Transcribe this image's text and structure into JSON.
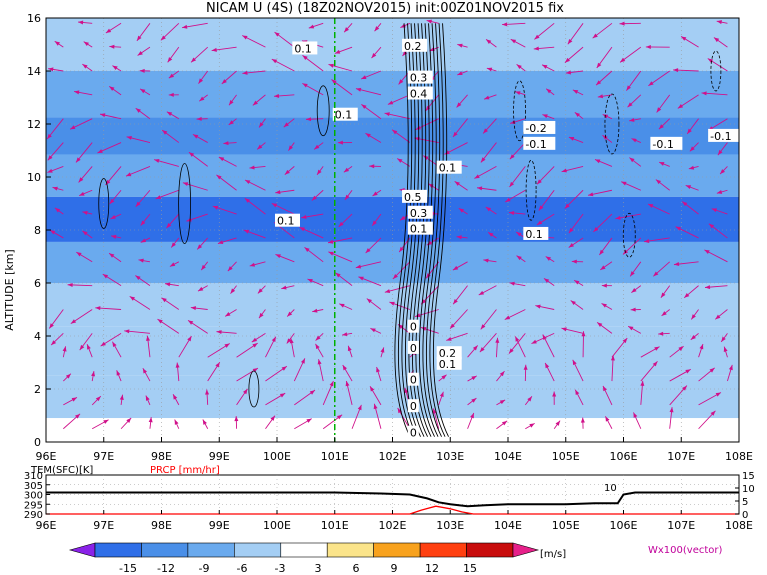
{
  "title": "NICAM U (4S) (18Z02NOV2015) init:00Z01NOV2015 fix",
  "chart_data": [
    {
      "type": "heatmap",
      "title": "NICAM U (4S) (18Z02NOV2015) init:00Z01NOV2015 fix",
      "ylabel": "ALTITUDE [km]",
      "xlabel": "",
      "x_ticks": [
        "96E",
        "97E",
        "98E",
        "99E",
        "100E",
        "101E",
        "102E",
        "103E",
        "104E",
        "105E",
        "106E",
        "107E",
        "108E"
      ],
      "x_range": [
        96,
        108
      ],
      "y_ticks": [
        "0",
        "2",
        "4",
        "6",
        "8",
        "10",
        "12",
        "14",
        "16"
      ],
      "y_range": [
        0,
        16
      ],
      "marker_line_lon": 101,
      "bands": [
        {
          "alt": 15.0,
          "u": -6
        },
        {
          "alt": 13.0,
          "u": -8
        },
        {
          "alt": 11.5,
          "u": -11
        },
        {
          "alt": 10.2,
          "u": -9
        },
        {
          "alt": 8.3,
          "u": -14
        },
        {
          "alt": 6.8,
          "u": -9
        },
        {
          "alt": 5.2,
          "u": -5
        },
        {
          "alt": 3.5,
          "u": -4
        },
        {
          "alt": 1.5,
          "u": -6
        },
        {
          "alt": 0.3,
          "u": -3
        }
      ],
      "contour_labels": [
        "0.1",
        "0.2",
        "0.3",
        "0.4",
        "0.1",
        "0.1",
        "0.5",
        "0.3",
        "0.1",
        "0.1",
        "0.1",
        "-0.2",
        "-0.1",
        "-0.1",
        "-0.1",
        "0.2",
        "0.1",
        "0",
        "0",
        "0",
        "0",
        "0"
      ],
      "vector_label": "Wx100(vector)"
    },
    {
      "type": "line",
      "series": [
        {
          "name": "TEM(SFC)[K]",
          "color": "#000000",
          "x": [
            96,
            97,
            98,
            99,
            100,
            101,
            101.8,
            102.3,
            102.6,
            102.8,
            103.0,
            103.3,
            103.6,
            104,
            104.5,
            105,
            105.5,
            105.9,
            106,
            106.2,
            107,
            108
          ],
          "values": [
            301,
            301,
            301,
            301,
            301,
            301,
            300.5,
            300,
            298,
            296,
            295,
            294,
            294.5,
            295,
            295,
            295,
            295.5,
            295.5,
            300,
            301,
            301,
            301
          ]
        },
        {
          "name": "PRCP [mm/hr]",
          "color": "#ff0000",
          "x": [
            96,
            101,
            102.3,
            102.5,
            102.75,
            103.0,
            103.2,
            103.4,
            104,
            108
          ],
          "values": [
            0,
            0,
            0,
            1.5,
            3,
            2,
            0.8,
            0,
            0,
            0
          ]
        }
      ],
      "left_ticks": [
        "310",
        "305",
        "300",
        "295",
        "290"
      ],
      "left_range": [
        290,
        310
      ],
      "right_ticks": [
        "15",
        "10",
        "5",
        "0"
      ],
      "right_range": [
        0,
        15
      ],
      "annotation": "10",
      "x_ticks": [
        "96E",
        "97E",
        "98E",
        "99E",
        "100E",
        "101E",
        "102E",
        "103E",
        "104E",
        "105E",
        "106E",
        "107E",
        "108E"
      ]
    }
  ],
  "colorbar": {
    "ticks": [
      "-15",
      "-12",
      "-9",
      "-6",
      "-3",
      "3",
      "6",
      "9",
      "12",
      "15"
    ],
    "unit": "[m/s]",
    "colors": [
      "#8a22e8",
      "#2f6fe8",
      "#4a8fe8",
      "#6aaaee",
      "#a4cef4",
      "#ffffff",
      "#fbe48a",
      "#f8a21e",
      "#ff4010",
      "#c80c0c",
      "#e6208a"
    ]
  }
}
